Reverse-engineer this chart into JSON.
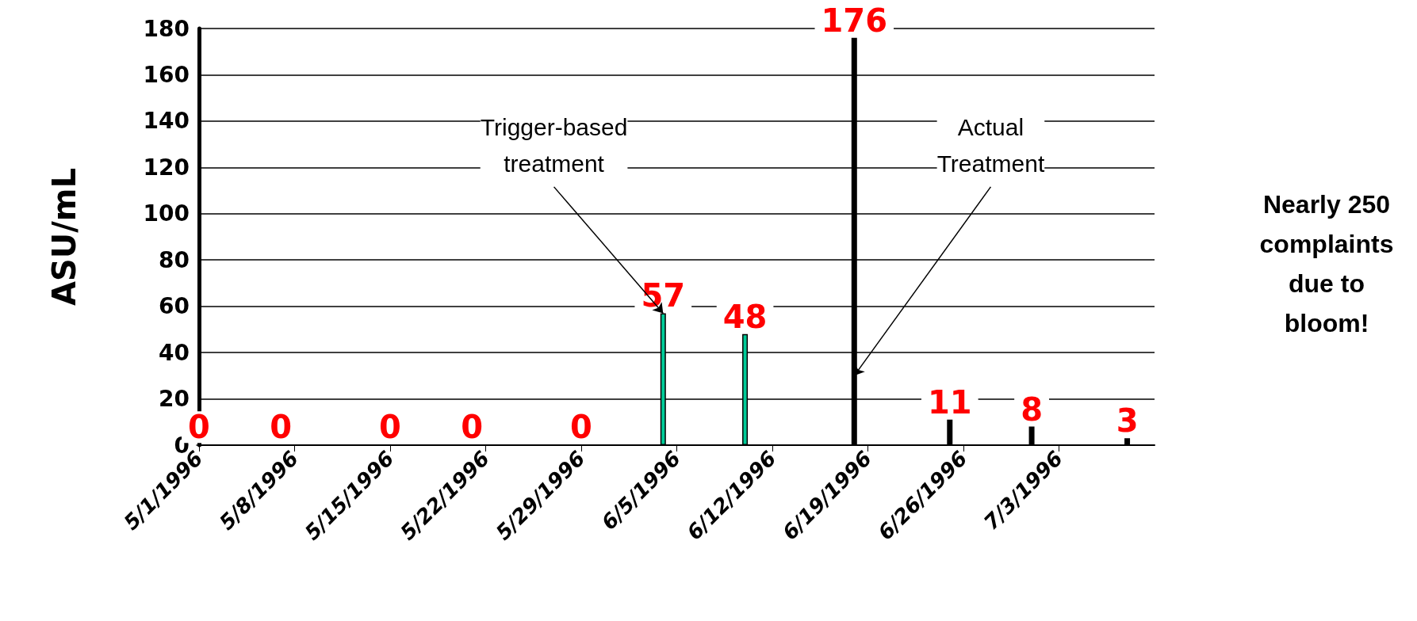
{
  "chart_data": {
    "type": "bar",
    "ylabel": "ASU/mL",
    "x": [
      "1996-05-01",
      "1996-05-07",
      "1996-05-15",
      "1996-05-21",
      "1996-05-29",
      "1996-06-04",
      "1996-06-10",
      "1996-06-18",
      "1996-06-25",
      "1996-07-01",
      "1996-07-08"
    ],
    "values": [
      0,
      0,
      0,
      0,
      0,
      57,
      48,
      176,
      11,
      8,
      3
    ],
    "colors": [
      "#000000",
      "#000000",
      "#000000",
      "#000000",
      "#000000",
      "#00cc99",
      "#00cc99",
      "#000000",
      "#000000",
      "#000000",
      "#000000"
    ],
    "data_labels": true,
    "ylim": [
      0,
      180
    ],
    "yticks": [
      0,
      20,
      40,
      60,
      80,
      100,
      120,
      140,
      160,
      180
    ],
    "xlim": [
      "1996-05-01",
      "1996-07-10"
    ],
    "xticks": [
      {
        "value": "1996-05-01",
        "label": "5/1/1996"
      },
      {
        "value": "1996-05-08",
        "label": "5/8/1996"
      },
      {
        "value": "1996-05-15",
        "label": "5/15/1996"
      },
      {
        "value": "1996-05-22",
        "label": "5/22/1996"
      },
      {
        "value": "1996-05-29",
        "label": "5/29/1996"
      },
      {
        "value": "1996-06-05",
        "label": "6/5/1996"
      },
      {
        "value": "1996-06-12",
        "label": "6/12/1996"
      },
      {
        "value": "1996-06-19",
        "label": "6/19/1996"
      },
      {
        "value": "1996-06-26",
        "label": "6/26/1996"
      },
      {
        "value": "1996-07-03",
        "label": "7/3/1996"
      }
    ],
    "grid": "y",
    "annotations": [
      {
        "text": "Trigger-based\ntreatment",
        "x": "1996-06-04",
        "y": 57
      },
      {
        "text": "Actual\nTreatment",
        "x": "1996-06-18",
        "y": 30
      },
      "Nearly 250\ncomplaints\ndue to\nbloom!"
    ]
  }
}
